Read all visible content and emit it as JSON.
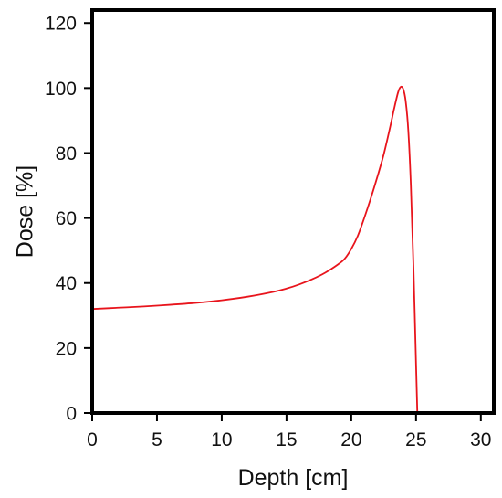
{
  "chart_data": {
    "type": "line",
    "title": "",
    "xlabel": "Depth [cm]",
    "ylabel": "Dose [%]",
    "xlim": [
      0,
      31
    ],
    "ylim": [
      0,
      124
    ],
    "x_ticks": [
      0,
      5,
      10,
      15,
      20,
      25,
      30
    ],
    "y_ticks": [
      0,
      20,
      40,
      60,
      80,
      100,
      120
    ],
    "grid": false,
    "legend": "none",
    "series": [
      {
        "color": "#e8141c",
        "x": [
          0,
          2,
          4,
          6,
          8,
          10,
          12,
          14,
          15,
          16,
          17,
          18,
          19,
          19.5,
          20,
          20.5,
          21,
          21.5,
          22,
          22.5,
          23,
          23.3,
          23.6,
          23.8,
          24,
          24.2,
          24.4,
          24.6,
          24.8,
          25,
          25.1
        ],
        "y": [
          32,
          32.4,
          32.8,
          33.3,
          33.9,
          34.7,
          35.8,
          37.3,
          38.3,
          39.6,
          41.2,
          43.2,
          45.8,
          47.5,
          50.5,
          54.5,
          60,
          66,
          72.5,
          79.5,
          88,
          93.5,
          98.5,
          100.3,
          99.8,
          96,
          87,
          70,
          45,
          15,
          0
        ]
      }
    ]
  }
}
